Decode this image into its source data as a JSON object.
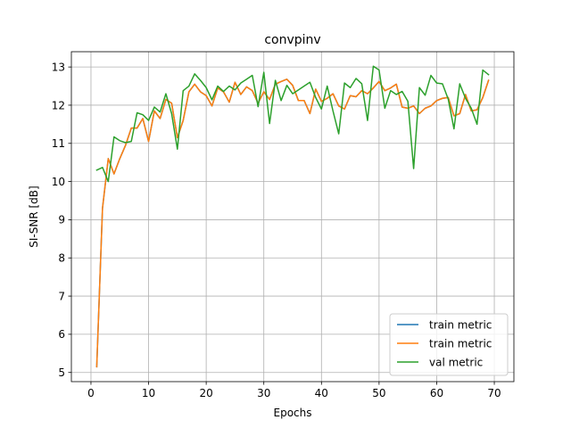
{
  "chart_data": {
    "type": "line",
    "title": "convpinv",
    "xlabel": "Epochs",
    "ylabel": "SI-SNR [dB]",
    "xlim": [
      -3.4,
      73.4
    ],
    "ylim": [
      4.76,
      13.4
    ],
    "xticks": [
      0,
      10,
      20,
      30,
      40,
      50,
      60,
      70
    ],
    "yticks": [
      5,
      6,
      7,
      8,
      9,
      10,
      11,
      12,
      13
    ],
    "grid": true,
    "legend_position": "lower-right",
    "x": [
      1,
      2,
      3,
      4,
      5,
      6,
      7,
      8,
      9,
      10,
      11,
      12,
      13,
      14,
      15,
      16,
      17,
      18,
      19,
      20,
      21,
      22,
      23,
      24,
      25,
      26,
      27,
      28,
      29,
      30,
      31,
      32,
      33,
      34,
      35,
      36,
      37,
      38,
      39,
      40,
      41,
      42,
      43,
      44,
      45,
      46,
      47,
      48,
      49,
      50,
      51,
      52,
      53,
      54,
      55,
      56,
      57,
      58,
      59,
      60,
      61,
      62,
      63,
      64,
      65,
      66,
      67,
      68,
      69
    ],
    "series": [
      {
        "name": "train metric",
        "color": "#1f77b4",
        "values": [
          5.15,
          9.3,
          10.6,
          10.2,
          10.6,
          10.95,
          11.4,
          11.4,
          11.65,
          11.05,
          11.85,
          11.65,
          12.15,
          12.05,
          11.15,
          11.6,
          12.35,
          12.55,
          12.35,
          12.25,
          11.98,
          12.45,
          12.35,
          12.08,
          12.6,
          12.28,
          12.48,
          12.38,
          12.05,
          12.35,
          12.15,
          12.55,
          12.62,
          12.68,
          12.52,
          12.12,
          12.12,
          11.78,
          12.42,
          12.1,
          12.18,
          12.3,
          11.98,
          11.9,
          12.25,
          12.22,
          12.38,
          12.3,
          12.45,
          12.62,
          12.38,
          12.45,
          12.55,
          11.95,
          11.92,
          11.98,
          11.78,
          11.92,
          11.98,
          12.12,
          12.18,
          12.2,
          11.72,
          11.78,
          12.28,
          11.85,
          11.88,
          12.2,
          12.65
        ]
      },
      {
        "name": "train metric",
        "color": "#ff7f0e",
        "values": [
          5.15,
          9.3,
          10.6,
          10.2,
          10.6,
          10.95,
          11.4,
          11.4,
          11.65,
          11.05,
          11.85,
          11.65,
          12.15,
          12.05,
          11.15,
          11.6,
          12.35,
          12.55,
          12.35,
          12.25,
          11.98,
          12.45,
          12.35,
          12.08,
          12.6,
          12.28,
          12.48,
          12.38,
          12.05,
          12.35,
          12.15,
          12.55,
          12.62,
          12.68,
          12.52,
          12.12,
          12.12,
          11.78,
          12.42,
          12.1,
          12.18,
          12.3,
          11.98,
          11.9,
          12.25,
          12.22,
          12.38,
          12.3,
          12.45,
          12.62,
          12.38,
          12.45,
          12.55,
          11.95,
          11.92,
          11.98,
          11.78,
          11.92,
          11.98,
          12.12,
          12.18,
          12.2,
          11.72,
          11.78,
          12.28,
          11.85,
          11.88,
          12.2,
          12.65
        ]
      },
      {
        "name": "val metric",
        "color": "#2ca02c",
        "values": [
          10.3,
          10.37,
          10.0,
          11.17,
          11.07,
          11.02,
          11.05,
          11.8,
          11.75,
          11.6,
          11.95,
          11.82,
          12.3,
          11.78,
          10.85,
          12.38,
          12.5,
          12.82,
          12.65,
          12.46,
          12.14,
          12.5,
          12.36,
          12.5,
          12.4,
          12.58,
          12.68,
          12.78,
          11.96,
          12.86,
          11.52,
          12.65,
          12.12,
          12.52,
          12.3,
          12.4,
          12.5,
          12.6,
          12.2,
          11.9,
          12.5,
          11.85,
          11.25,
          12.58,
          12.46,
          12.7,
          12.56,
          11.6,
          13.02,
          12.92,
          11.92,
          12.38,
          12.28,
          12.36,
          12.1,
          10.34,
          12.46,
          12.26,
          12.78,
          12.58,
          12.56,
          12.16,
          11.38,
          12.56,
          12.18,
          11.92,
          11.5,
          12.92,
          12.8
        ]
      }
    ]
  }
}
